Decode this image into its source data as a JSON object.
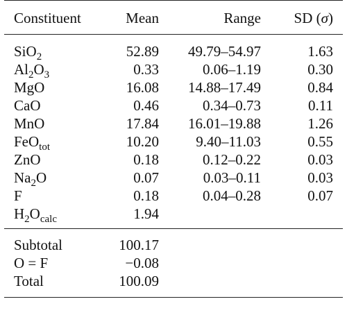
{
  "table": {
    "headers": {
      "constituent": "Constituent",
      "mean": "Mean",
      "range": "Range",
      "sd_prefix": "SD (",
      "sd_sigma": "σ",
      "sd_suffix": ")"
    },
    "rows": [
      {
        "base": "SiO",
        "sub": "2",
        "tail": "",
        "mean": "52.89",
        "range": "49.79–54.97",
        "sd": "1.63"
      },
      {
        "base": "Al",
        "sub": "2",
        "tail": "O",
        "sub2": "3",
        "mean": "0.33",
        "range": "0.06–1.19",
        "sd": "0.30"
      },
      {
        "base": "MgO",
        "sub": "",
        "tail": "",
        "mean": "16.08",
        "range": "14.88–17.49",
        "sd": "0.84"
      },
      {
        "base": "CaO",
        "sub": "",
        "tail": "",
        "mean": "0.46",
        "range": "0.34–0.73",
        "sd": "0.11"
      },
      {
        "base": "MnO",
        "sub": "",
        "tail": "",
        "mean": "17.84",
        "range": "16.01–19.88",
        "sd": "1.26"
      },
      {
        "base": "FeO",
        "sub": "tot",
        "tail": "",
        "mean": "10.20",
        "range": "9.40–11.03",
        "sd": "0.55"
      },
      {
        "base": "ZnO",
        "sub": "",
        "tail": "",
        "mean": "0.18",
        "range": "0.12–0.22",
        "sd": "0.03"
      },
      {
        "base": "Na",
        "sub": "2",
        "tail": "O",
        "mean": "0.07",
        "range": "0.03–0.11",
        "sd": "0.03"
      },
      {
        "base": "F",
        "sub": "",
        "tail": "",
        "mean": "0.18",
        "range": "0.04–0.28",
        "sd": "0.07"
      },
      {
        "base": "H",
        "sub": "2",
        "tail": "O",
        "sub2": "calc",
        "mean": "1.94",
        "range": "",
        "sd": ""
      }
    ],
    "summary": [
      {
        "label": "Subtotal",
        "mean": "100.17"
      },
      {
        "label": "O = F",
        "mean": "−0.08"
      },
      {
        "label": "Total",
        "mean": "100.09"
      }
    ]
  }
}
